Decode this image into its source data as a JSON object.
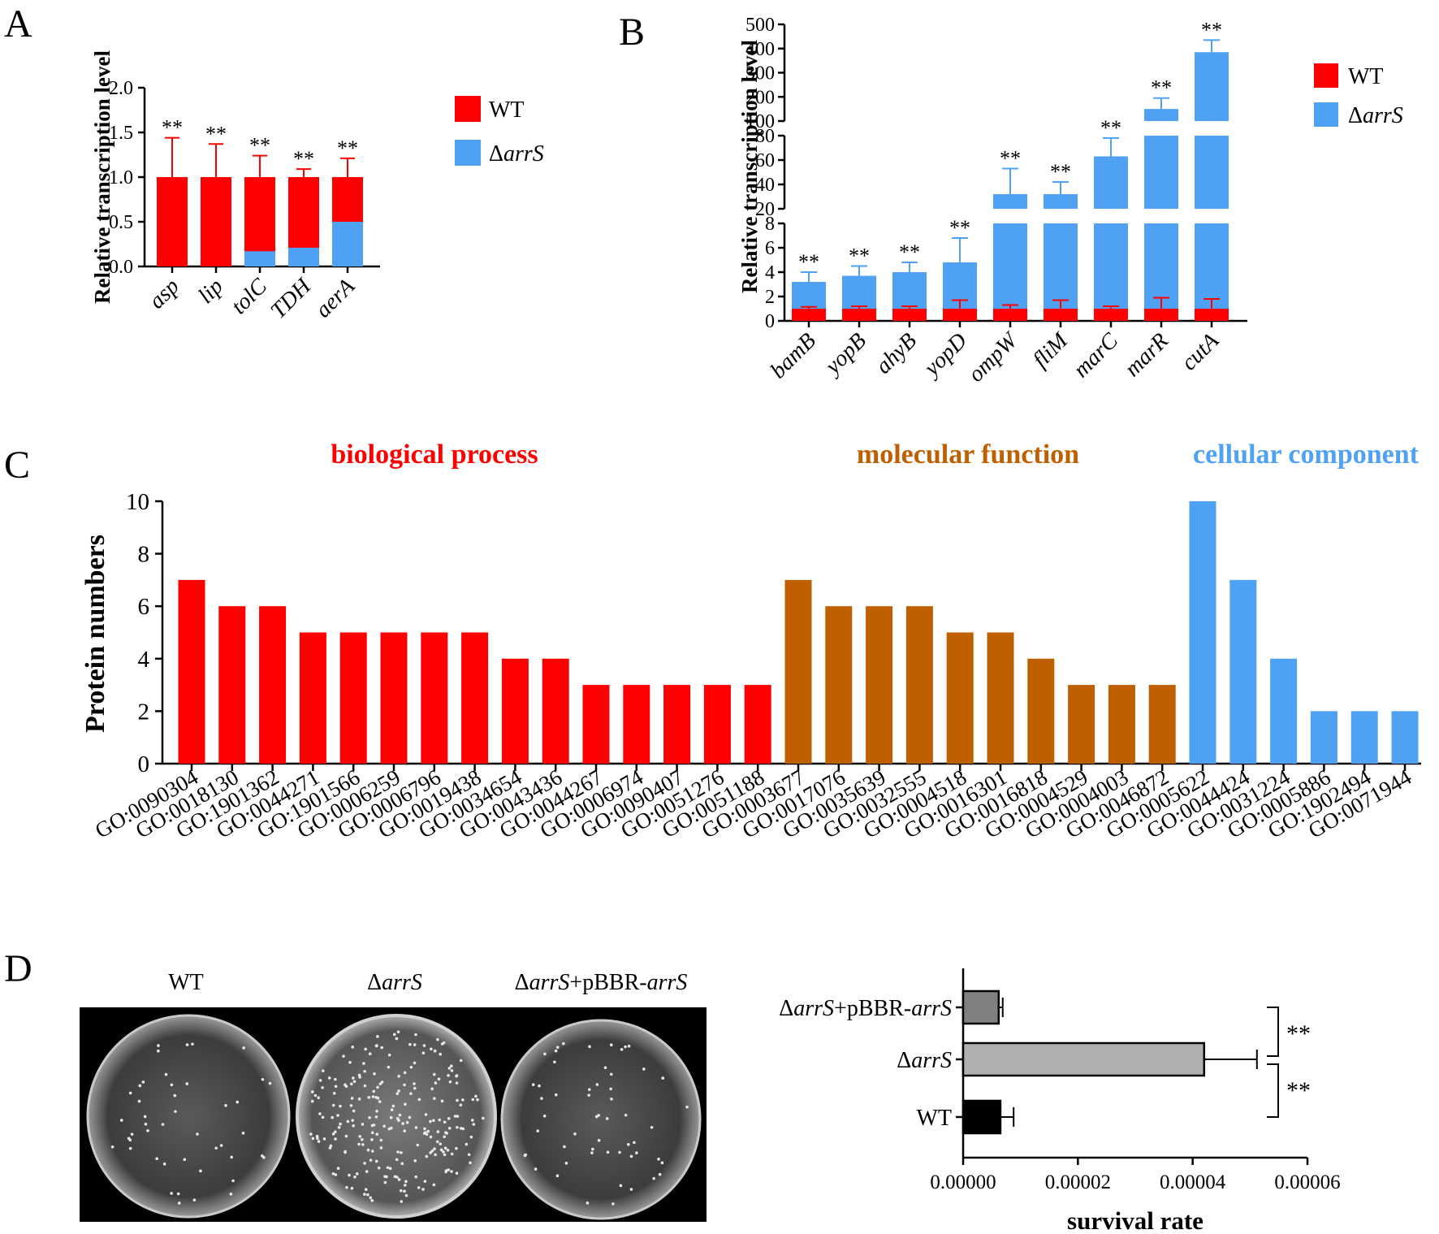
{
  "colors": {
    "wt": "#ff0000",
    "arrs": "#4ea1f3",
    "mf": "#c05f00",
    "dark": "#000000",
    "grey1": "#808080",
    "grey2": "#b0b0b0"
  },
  "chart_data": [
    {
      "panel": "A",
      "type": "bar",
      "ylabel": "Relative transcription level",
      "ylim": [
        0,
        2.0
      ],
      "yticks": [
        "0.0",
        "0.5",
        "1.0",
        "1.5",
        "2.0"
      ],
      "categories": [
        "asp",
        "lip",
        "tolC",
        "TDH",
        "aerA"
      ],
      "series": [
        {
          "name": "WT",
          "values": [
            1.0,
            1.0,
            1.0,
            1.0,
            1.0
          ],
          "errors": [
            0.44,
            0.37,
            0.24,
            0.09,
            0.21
          ]
        },
        {
          "name": "ΔarrS",
          "values": [
            0.0,
            0.0,
            0.17,
            0.21,
            0.5
          ],
          "errors": [
            0,
            0,
            0.1,
            0.1,
            0.02
          ]
        }
      ],
      "annotations": [
        "**",
        "**",
        "**",
        "**",
        "**"
      ],
      "legend": [
        "WT",
        "ΔarrS"
      ]
    },
    {
      "panel": "B",
      "type": "bar",
      "ylabel": "Relative transcription level",
      "broken_axis": true,
      "segments": [
        {
          "ylim": [
            0,
            8
          ],
          "yticks": [
            "0",
            "2",
            "4",
            "6",
            "8"
          ]
        },
        {
          "ylim": [
            20,
            80
          ],
          "yticks": [
            "20",
            "40",
            "60",
            "80"
          ]
        },
        {
          "ylim": [
            100,
            500
          ],
          "yticks": [
            "100",
            "200",
            "300",
            "400",
            "500"
          ]
        }
      ],
      "categories": [
        "bamB",
        "yopB",
        "ahyB",
        "yopD",
        "ompW",
        "fliM",
        "marC",
        "marR",
        "cutA"
      ],
      "series": [
        {
          "name": "WT",
          "values": [
            1,
            1,
            1,
            1,
            1,
            1,
            1,
            1,
            1
          ],
          "errors": [
            0.15,
            0.2,
            0.2,
            0.7,
            0.3,
            0.7,
            0.2,
            0.9,
            0.8
          ]
        },
        {
          "name": "ΔarrS",
          "values": [
            3.2,
            3.7,
            4.0,
            4.8,
            32,
            32,
            63,
            150,
            385
          ],
          "errors": [
            0.8,
            0.8,
            0.8,
            2.0,
            21,
            10,
            15,
            45,
            50
          ]
        }
      ],
      "annotations": [
        "**",
        "**",
        "**",
        "**",
        "**",
        "**",
        "**",
        "**",
        "**"
      ],
      "legend": [
        "WT",
        "ΔarrS"
      ]
    },
    {
      "panel": "C",
      "type": "bar",
      "ylabel": "Protein numbers",
      "ylim": [
        0,
        10
      ],
      "yticks": [
        "0",
        "2",
        "4",
        "6",
        "8",
        "10"
      ],
      "groups": [
        {
          "name": "biological process",
          "color_key": "wt",
          "categories": [
            "GO:0090304",
            "GO:0018130",
            "GO:1901362",
            "GO:0044271",
            "GO:1901566",
            "GO:0006259",
            "GO:0006796",
            "GO:0019438",
            "GO:0034654",
            "GO:0043436",
            "GO:0044267",
            "GO:0006974",
            "GO:0090407",
            "GO:0051276",
            "GO:0051188"
          ],
          "values": [
            7,
            6,
            6,
            5,
            5,
            5,
            5,
            5,
            4,
            4,
            3,
            3,
            3,
            3,
            3
          ]
        },
        {
          "name": "molecular function",
          "color_key": "mf",
          "categories": [
            "GO:0003677",
            "GO:0017076",
            "GO:0035639",
            "GO:0032555",
            "GO:0004518",
            "GO:0016301",
            "GO:0016818",
            "GO:0004529",
            "GO:0004003",
            "GO:0046872"
          ],
          "values": [
            7,
            6,
            6,
            6,
            5,
            5,
            4,
            3,
            3,
            3
          ]
        },
        {
          "name": "cellular component",
          "color_key": "arrs",
          "categories": [
            "GO:0005622",
            "GO:0044424",
            "GO:0031224",
            "GO:0005886",
            "GO:1902494",
            "GO:0071944"
          ],
          "values": [
            10,
            7,
            4,
            2,
            2,
            2
          ]
        }
      ]
    },
    {
      "panel": "D",
      "type": "bar",
      "orientation": "horizontal",
      "plate_labels": [
        "WT",
        "ΔarrS",
        "ΔarrS+pBBR-arrS"
      ],
      "categories": [
        "ΔarrS+pBBR-arrS",
        "ΔarrS",
        "WT"
      ],
      "values": [
        6.2e-06,
        4.2e-05,
        6.5e-06
      ],
      "errors": [
        7e-07,
        9.2e-06,
        2.3e-06
      ],
      "xlabel": "survival rate",
      "xlim": [
        0,
        6e-05
      ],
      "xticks": [
        "0.00000",
        "0.00002",
        "0.00004",
        "0.00006"
      ],
      "annotations": [
        "**",
        "**"
      ]
    }
  ]
}
